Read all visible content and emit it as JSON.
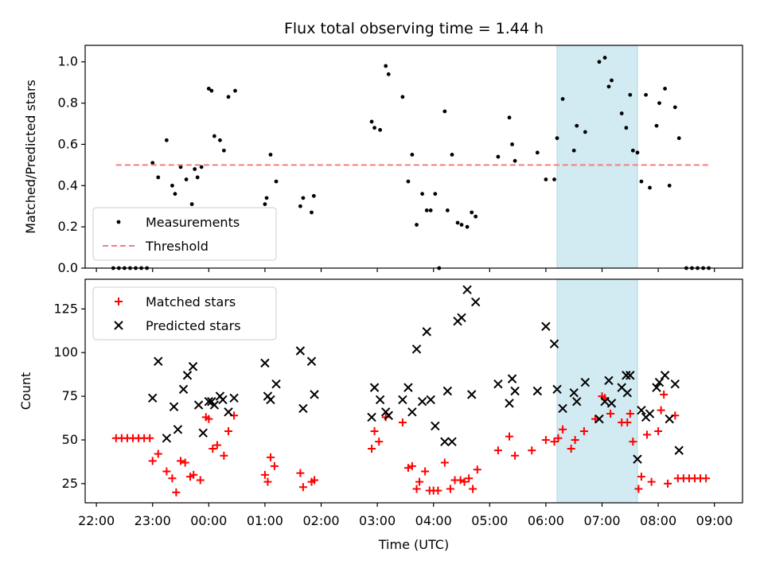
{
  "chart_data": {
    "title": "Flux total observing time = 1.44 h",
    "xlabel": "Time (UTC)",
    "x_unit": "hours (UTC, continuous past midnight)",
    "xlim": [
      21.8,
      33.5
    ],
    "x_ticks": [
      {
        "value": 22,
        "label": "22:00"
      },
      {
        "value": 23,
        "label": "23:00"
      },
      {
        "value": 24,
        "label": "00:00"
      },
      {
        "value": 25,
        "label": "01:00"
      },
      {
        "value": 26,
        "label": "02:00"
      },
      {
        "value": 27,
        "label": "03:00"
      },
      {
        "value": 28,
        "label": "04:00"
      },
      {
        "value": 29,
        "label": "05:00"
      },
      {
        "value": 30,
        "label": "06:00"
      },
      {
        "value": 31,
        "label": "07:00"
      },
      {
        "value": 32,
        "label": "08:00"
      },
      {
        "value": 33,
        "label": "09:00"
      }
    ],
    "highlight_span": {
      "x0": 30.2,
      "x1": 31.63,
      "color": "#add8e6"
    },
    "top": {
      "type": "scatter",
      "ylabel": "Matched/Predicted stars",
      "ylim": [
        0,
        1.08
      ],
      "y_ticks": [
        "0.0",
        "0.2",
        "0.4",
        "0.6",
        "0.8",
        "1.0"
      ],
      "y_tick_values": [
        0,
        0.2,
        0.4,
        0.6,
        0.8,
        1.0
      ],
      "legend": {
        "location": "lower left",
        "items": [
          "Measurements",
          "Threshold"
        ]
      },
      "series": [
        {
          "name": "Measurements",
          "marker": "dot",
          "color": "#000000",
          "points": [
            [
              22.3,
              0
            ],
            [
              22.4,
              0
            ],
            [
              22.5,
              0
            ],
            [
              22.6,
              0
            ],
            [
              22.7,
              0
            ],
            [
              22.8,
              0
            ],
            [
              22.9,
              0
            ],
            [
              23.0,
              0.51
            ],
            [
              23.1,
              0.44
            ],
            [
              23.25,
              0.62
            ],
            [
              23.35,
              0.4
            ],
            [
              23.4,
              0.36
            ],
            [
              23.5,
              0.49
            ],
            [
              23.6,
              0.43
            ],
            [
              23.7,
              0.31
            ],
            [
              23.75,
              0.48
            ],
            [
              23.8,
              0.44
            ],
            [
              23.87,
              0.49
            ],
            [
              24.0,
              0.87
            ],
            [
              24.05,
              0.86
            ],
            [
              24.1,
              0.64
            ],
            [
              24.2,
              0.62
            ],
            [
              24.27,
              0.57
            ],
            [
              24.35,
              0.83
            ],
            [
              24.47,
              0.86
            ],
            [
              25.0,
              0.31
            ],
            [
              25.03,
              0.34
            ],
            [
              25.1,
              0.55
            ],
            [
              25.2,
              0.42
            ],
            [
              25.63,
              0.3
            ],
            [
              25.68,
              0.34
            ],
            [
              25.83,
              0.27
            ],
            [
              25.87,
              0.35
            ],
            [
              26.9,
              0.71
            ],
            [
              26.95,
              0.68
            ],
            [
              27.05,
              0.67
            ],
            [
              27.15,
              0.98
            ],
            [
              27.2,
              0.94
            ],
            [
              27.45,
              0.83
            ],
            [
              27.55,
              0.42
            ],
            [
              27.62,
              0.55
            ],
            [
              27.7,
              0.21
            ],
            [
              27.8,
              0.36
            ],
            [
              27.88,
              0.28
            ],
            [
              27.95,
              0.28
            ],
            [
              28.03,
              0.36
            ],
            [
              28.1,
              0.0
            ],
            [
              28.2,
              0.76
            ],
            [
              28.25,
              0.28
            ],
            [
              28.33,
              0.55
            ],
            [
              28.43,
              0.22
            ],
            [
              28.5,
              0.21
            ],
            [
              28.6,
              0.2
            ],
            [
              28.68,
              0.27
            ],
            [
              28.75,
              0.25
            ],
            [
              29.15,
              0.54
            ],
            [
              29.35,
              0.73
            ],
            [
              29.4,
              0.6
            ],
            [
              29.45,
              0.52
            ],
            [
              29.85,
              0.56
            ],
            [
              30.0,
              0.43
            ],
            [
              30.15,
              0.43
            ],
            [
              30.2,
              0.63
            ],
            [
              30.3,
              0.82
            ],
            [
              30.5,
              0.57
            ],
            [
              30.55,
              0.69
            ],
            [
              30.7,
              0.66
            ],
            [
              30.95,
              1.0
            ],
            [
              31.05,
              1.02
            ],
            [
              31.12,
              0.88
            ],
            [
              31.17,
              0.91
            ],
            [
              31.35,
              0.75
            ],
            [
              31.43,
              0.68
            ],
            [
              31.5,
              0.84
            ],
            [
              31.55,
              0.57
            ],
            [
              31.63,
              0.56
            ],
            [
              31.7,
              0.42
            ],
            [
              31.78,
              0.84
            ],
            [
              31.85,
              0.39
            ],
            [
              31.97,
              0.69
            ],
            [
              32.02,
              0.8
            ],
            [
              32.12,
              0.87
            ],
            [
              32.2,
              0.4
            ],
            [
              32.3,
              0.78
            ],
            [
              32.37,
              0.63
            ],
            [
              32.5,
              0
            ],
            [
              32.6,
              0
            ],
            [
              32.7,
              0
            ],
            [
              32.8,
              0
            ],
            [
              32.9,
              0
            ]
          ]
        },
        {
          "name": "Threshold",
          "type": "line",
          "style": "dashed",
          "color": "#f08080",
          "points": [
            [
              22.35,
              0.5
            ],
            [
              32.9,
              0.5
            ]
          ]
        }
      ]
    },
    "bottom": {
      "type": "scatter",
      "ylabel": "Count",
      "ylim": [
        14,
        142
      ],
      "y_ticks": [
        "25",
        "50",
        "75",
        "100",
        "125"
      ],
      "y_tick_values": [
        25,
        50,
        75,
        100,
        125
      ],
      "legend": {
        "location": "upper left",
        "items": [
          "Matched stars",
          "Predicted stars"
        ]
      },
      "series": [
        {
          "name": "Matched stars",
          "marker": "plus",
          "color": "#ff0000",
          "points": [
            [
              22.35,
              51
            ],
            [
              22.45,
              51
            ],
            [
              22.55,
              51
            ],
            [
              22.65,
              51
            ],
            [
              22.75,
              51
            ],
            [
              22.85,
              51
            ],
            [
              22.95,
              51
            ],
            [
              23.0,
              38
            ],
            [
              23.1,
              42
            ],
            [
              23.25,
              32
            ],
            [
              23.35,
              28
            ],
            [
              23.42,
              20
            ],
            [
              23.5,
              38
            ],
            [
              23.58,
              37
            ],
            [
              23.67,
              29
            ],
            [
              23.73,
              30
            ],
            [
              23.85,
              27
            ],
            [
              23.95,
              63
            ],
            [
              24.0,
              62
            ],
            [
              24.07,
              45
            ],
            [
              24.15,
              47
            ],
            [
              24.27,
              41
            ],
            [
              24.35,
              55
            ],
            [
              24.45,
              64
            ],
            [
              25.0,
              30
            ],
            [
              25.05,
              26
            ],
            [
              25.1,
              40
            ],
            [
              25.17,
              35
            ],
            [
              25.63,
              31
            ],
            [
              25.68,
              23
            ],
            [
              25.83,
              26
            ],
            [
              25.88,
              27
            ],
            [
              26.9,
              45
            ],
            [
              26.95,
              55
            ],
            [
              27.03,
              49
            ],
            [
              27.15,
              63
            ],
            [
              27.45,
              60
            ],
            [
              27.55,
              34
            ],
            [
              27.62,
              35
            ],
            [
              27.7,
              22
            ],
            [
              27.75,
              26
            ],
            [
              27.85,
              32
            ],
            [
              27.93,
              21
            ],
            [
              28.0,
              21
            ],
            [
              28.08,
              21
            ],
            [
              28.2,
              37
            ],
            [
              28.3,
              22
            ],
            [
              28.38,
              27
            ],
            [
              28.48,
              27
            ],
            [
              28.55,
              26
            ],
            [
              28.63,
              28
            ],
            [
              28.7,
              22
            ],
            [
              28.78,
              33
            ],
            [
              29.15,
              44
            ],
            [
              29.35,
              52
            ],
            [
              29.45,
              41
            ],
            [
              29.75,
              44
            ],
            [
              30.0,
              50
            ],
            [
              30.15,
              49
            ],
            [
              30.22,
              51
            ],
            [
              30.3,
              56
            ],
            [
              30.45,
              45
            ],
            [
              30.52,
              50
            ],
            [
              30.68,
              55
            ],
            [
              30.88,
              62
            ],
            [
              31.0,
              75
            ],
            [
              31.05,
              74
            ],
            [
              31.15,
              65
            ],
            [
              31.35,
              60
            ],
            [
              31.45,
              60
            ],
            [
              31.5,
              65
            ],
            [
              31.55,
              49
            ],
            [
              31.65,
              22
            ],
            [
              31.7,
              29
            ],
            [
              31.8,
              53
            ],
            [
              31.88,
              26
            ],
            [
              32.0,
              55
            ],
            [
              32.05,
              67
            ],
            [
              32.1,
              76
            ],
            [
              32.17,
              25
            ],
            [
              32.3,
              64
            ],
            [
              32.35,
              28
            ],
            [
              32.45,
              28
            ],
            [
              32.55,
              28
            ],
            [
              32.65,
              28
            ],
            [
              32.75,
              28
            ],
            [
              32.85,
              28
            ]
          ]
        },
        {
          "name": "Predicted stars",
          "marker": "x",
          "color": "#000000",
          "points": [
            [
              23.0,
              74
            ],
            [
              23.1,
              95
            ],
            [
              23.25,
              51
            ],
            [
              23.38,
              69
            ],
            [
              23.45,
              56
            ],
            [
              23.55,
              79
            ],
            [
              23.62,
              87
            ],
            [
              23.72,
              92
            ],
            [
              23.82,
              70
            ],
            [
              23.9,
              54
            ],
            [
              24.0,
              72
            ],
            [
              24.05,
              72
            ],
            [
              24.1,
              70
            ],
            [
              24.2,
              75
            ],
            [
              24.25,
              73
            ],
            [
              24.35,
              66
            ],
            [
              24.45,
              74
            ],
            [
              25.0,
              94
            ],
            [
              25.05,
              75
            ],
            [
              25.1,
              73
            ],
            [
              25.2,
              82
            ],
            [
              25.63,
              101
            ],
            [
              25.68,
              68
            ],
            [
              25.83,
              95
            ],
            [
              25.88,
              76
            ],
            [
              26.9,
              63
            ],
            [
              26.95,
              80
            ],
            [
              27.05,
              73
            ],
            [
              27.15,
              66
            ],
            [
              27.2,
              64
            ],
            [
              27.45,
              73
            ],
            [
              27.55,
              80
            ],
            [
              27.62,
              66
            ],
            [
              27.7,
              102
            ],
            [
              27.8,
              72
            ],
            [
              27.88,
              112
            ],
            [
              27.95,
              73
            ],
            [
              28.03,
              58
            ],
            [
              28.25,
              78
            ],
            [
              28.2,
              49
            ],
            [
              28.33,
              49
            ],
            [
              28.43,
              118
            ],
            [
              28.5,
              120
            ],
            [
              28.6,
              136
            ],
            [
              28.68,
              76
            ],
            [
              28.75,
              129
            ],
            [
              29.15,
              82
            ],
            [
              29.35,
              71
            ],
            [
              29.4,
              85
            ],
            [
              29.45,
              78
            ],
            [
              29.85,
              78
            ],
            [
              30.0,
              115
            ],
            [
              30.15,
              105
            ],
            [
              30.2,
              79
            ],
            [
              30.3,
              68
            ],
            [
              30.5,
              77
            ],
            [
              30.55,
              72
            ],
            [
              30.7,
              83
            ],
            [
              30.95,
              62
            ],
            [
              31.05,
              72
            ],
            [
              31.12,
              84
            ],
            [
              31.17,
              71
            ],
            [
              31.35,
              80
            ],
            [
              31.43,
              87
            ],
            [
              31.45,
              77
            ],
            [
              31.5,
              87
            ],
            [
              31.63,
              39
            ],
            [
              31.7,
              67
            ],
            [
              31.78,
              63
            ],
            [
              31.85,
              65
            ],
            [
              31.97,
              80
            ],
            [
              32.02,
              83
            ],
            [
              32.12,
              87
            ],
            [
              32.2,
              62
            ],
            [
              32.3,
              82
            ],
            [
              32.37,
              44
            ]
          ]
        }
      ]
    }
  }
}
